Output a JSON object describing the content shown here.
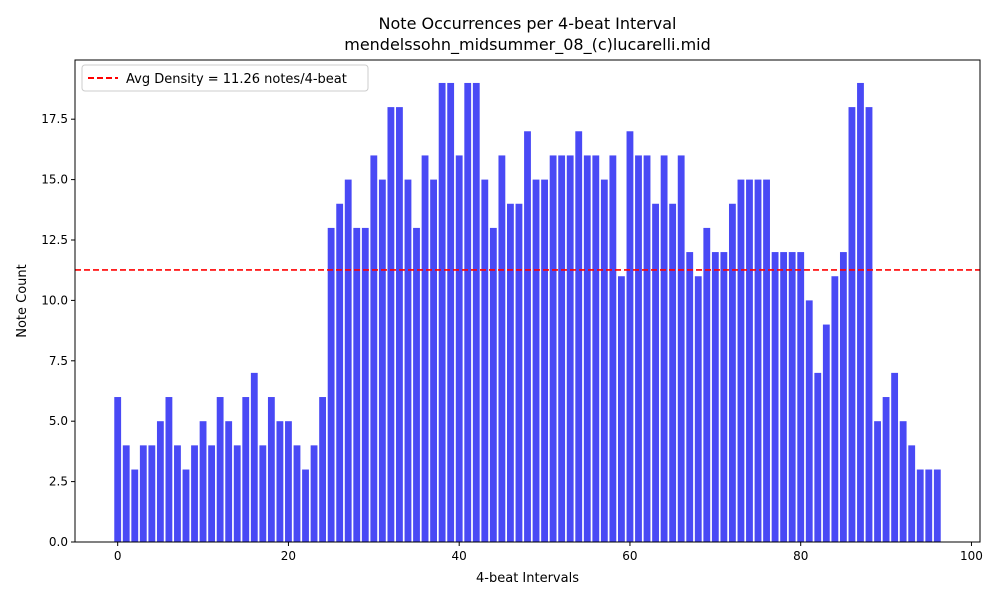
{
  "chart_data": {
    "type": "bar",
    "title": "Note Occurrences per 4-beat Interval",
    "subtitle": "mendelssohn_midsummer_08_(c)lucarelli.mid",
    "xlabel": "4-beat Intervals",
    "ylabel": "Note Count",
    "xlim": [
      -5,
      101
    ],
    "ylim": [
      0,
      19.95
    ],
    "xticks": [
      0,
      20,
      40,
      60,
      80,
      100
    ],
    "xtick_labels": [
      "0",
      "20",
      "40",
      "60",
      "80",
      "100"
    ],
    "yticks": [
      0,
      2.5,
      5,
      7.5,
      10,
      12.5,
      15,
      17.5
    ],
    "ytick_labels": [
      "0.0",
      "2.5",
      "5.0",
      "7.5",
      "10.0",
      "12.5",
      "15.0",
      "17.5"
    ],
    "bar_color": "#4949f5",
    "values": [
      6,
      4,
      3,
      4,
      4,
      5,
      6,
      4,
      3,
      4,
      5,
      4,
      6,
      5,
      4,
      6,
      7,
      4,
      6,
      5,
      5,
      4,
      3,
      4,
      6,
      13,
      14,
      15,
      13,
      13,
      16,
      15,
      18,
      18,
      15,
      13,
      16,
      15,
      19,
      19,
      16,
      19,
      19,
      15,
      13,
      16,
      14,
      14,
      17,
      15,
      15,
      16,
      16,
      16,
      17,
      16,
      16,
      15,
      16,
      11,
      17,
      16,
      16,
      14,
      16,
      14,
      16,
      12,
      11,
      13,
      12,
      12,
      14,
      15,
      15,
      15,
      15,
      12,
      12,
      12,
      12,
      10,
      7,
      9,
      11,
      12,
      18,
      19,
      18,
      5,
      6,
      7,
      5,
      4,
      3,
      3,
      3
    ],
    "reference_line": {
      "value": 11.26,
      "label": "Avg Density = 11.26 notes/4-beat",
      "color": "#ff0000",
      "style": "dashed"
    },
    "legend": {
      "placement": "top-left"
    },
    "grid": false
  }
}
